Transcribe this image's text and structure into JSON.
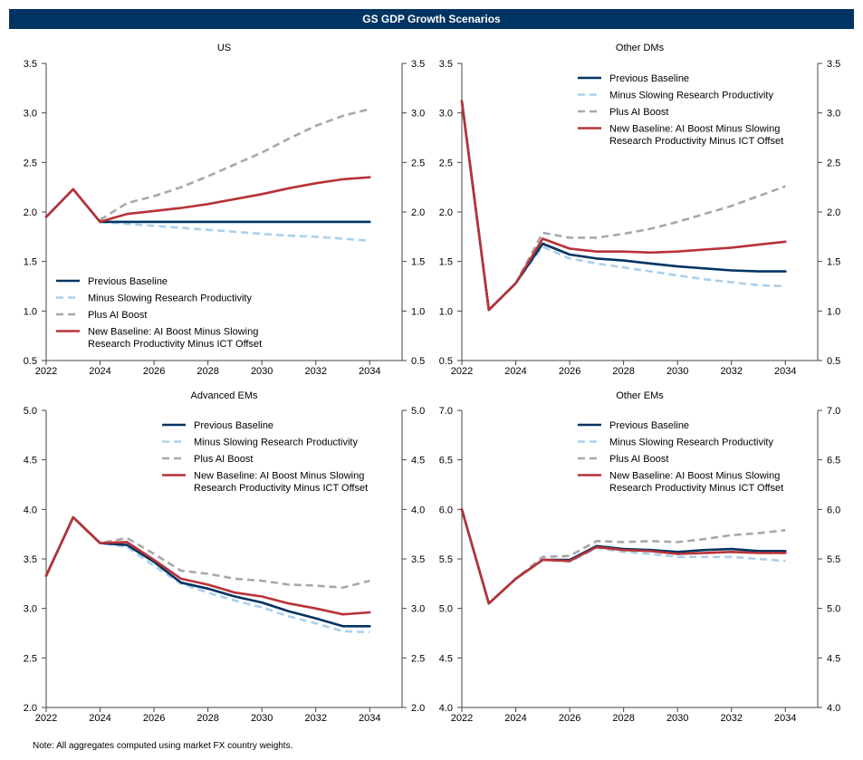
{
  "header": {
    "title": "GS GDP Growth Scenarios"
  },
  "footer": {
    "note": "Note: All aggregates computed using market FX country weights."
  },
  "colors": {
    "previous_baseline": "#003462",
    "minus_slowing": "#a9d0ec",
    "plus_ai": "#a8a8a8",
    "new_baseline": "#b83237",
    "header_bg": "#003462"
  },
  "chart_data": [
    {
      "type": "line",
      "title": "US",
      "legend_position": "bottom-left",
      "ylim": [
        0.5,
        3.5
      ],
      "yticks": [
        "0.5",
        "1.0",
        "1.5",
        "2.0",
        "2.5",
        "3.0",
        "3.5"
      ],
      "xlim": [
        2022,
        2035.2
      ],
      "xticks": [
        "2022",
        "2024",
        "2026",
        "2028",
        "2030",
        "2032",
        "2034"
      ],
      "series": [
        {
          "name": "Previous Baseline",
          "key": "previous_baseline",
          "dash": false,
          "x": [
            2022,
            2023,
            2024,
            2025,
            2026,
            2027,
            2028,
            2029,
            2030,
            2031,
            2032,
            2033,
            2034
          ],
          "values": [
            1.95,
            2.23,
            1.9,
            1.9,
            1.9,
            1.9,
            1.9,
            1.9,
            1.9,
            1.9,
            1.9,
            1.9,
            1.9
          ]
        },
        {
          "name": "Minus Slowing Research Productivity",
          "key": "minus_slowing",
          "dash": true,
          "x": [
            2024,
            2025,
            2026,
            2027,
            2028,
            2029,
            2030,
            2031,
            2032,
            2033,
            2034
          ],
          "values": [
            1.9,
            1.88,
            1.86,
            1.84,
            1.82,
            1.8,
            1.78,
            1.76,
            1.75,
            1.73,
            1.71
          ]
        },
        {
          "name": "Plus AI Boost",
          "key": "plus_ai",
          "dash": true,
          "x": [
            2024,
            2025,
            2026,
            2027,
            2028,
            2029,
            2030,
            2031,
            2032,
            2033,
            2034
          ],
          "values": [
            1.92,
            2.09,
            2.16,
            2.25,
            2.36,
            2.48,
            2.6,
            2.74,
            2.87,
            2.97,
            3.04
          ]
        },
        {
          "name": "New Baseline: AI Boost Minus Slowing Research Productivity Minus ICT Offset",
          "key": "new_baseline",
          "dash": false,
          "legend_lines": [
            "New Baseline: AI Boost Minus Slowing",
            "Research Productivity Minus ICT Offset"
          ],
          "x": [
            2022,
            2023,
            2024,
            2025,
            2026,
            2027,
            2028,
            2029,
            2030,
            2031,
            2032,
            2033,
            2034
          ],
          "values": [
            1.95,
            2.23,
            1.9,
            1.98,
            2.01,
            2.04,
            2.08,
            2.13,
            2.18,
            2.24,
            2.29,
            2.33,
            2.35
          ]
        }
      ]
    },
    {
      "type": "line",
      "title": "Other DMs",
      "legend_position": "top-right",
      "ylim": [
        0.5,
        3.5
      ],
      "yticks": [
        "0.5",
        "1.0",
        "1.5",
        "2.0",
        "2.5",
        "3.0",
        "3.5"
      ],
      "xlim": [
        2022,
        2035.2
      ],
      "xticks": [
        "2022",
        "2024",
        "2026",
        "2028",
        "2030",
        "2032",
        "2034"
      ],
      "series": [
        {
          "name": "Previous Baseline",
          "key": "previous_baseline",
          "dash": false,
          "x": [
            2022,
            2023,
            2024,
            2025,
            2026,
            2027,
            2028,
            2029,
            2030,
            2031,
            2032,
            2033,
            2034
          ],
          "values": [
            3.12,
            1.01,
            1.28,
            1.68,
            1.57,
            1.53,
            1.51,
            1.48,
            1.45,
            1.43,
            1.41,
            1.4,
            1.4
          ]
        },
        {
          "name": "Minus Slowing Research Productivity",
          "key": "minus_slowing",
          "dash": true,
          "x": [
            2022,
            2023,
            2024,
            2025,
            2026,
            2027,
            2028,
            2029,
            2030,
            2031,
            2032,
            2033,
            2034
          ],
          "values": [
            3.12,
            1.01,
            1.28,
            1.65,
            1.53,
            1.48,
            1.44,
            1.4,
            1.36,
            1.32,
            1.29,
            1.26,
            1.25
          ]
        },
        {
          "name": "Plus AI Boost",
          "key": "plus_ai",
          "dash": true,
          "x": [
            2022,
            2023,
            2024,
            2025,
            2026,
            2027,
            2028,
            2029,
            2030,
            2031,
            2032,
            2033,
            2034
          ],
          "values": [
            3.12,
            1.01,
            1.28,
            1.79,
            1.74,
            1.74,
            1.78,
            1.83,
            1.9,
            1.98,
            2.06,
            2.16,
            2.26
          ]
        },
        {
          "name": "New Baseline: AI Boost Minus Slowing Research Productivity Minus ICT Offset",
          "key": "new_baseline",
          "dash": false,
          "legend_lines": [
            "New Baseline: AI Boost Minus Slowing",
            "Research Productivity Minus ICT Offset"
          ],
          "x": [
            2022,
            2023,
            2024,
            2025,
            2026,
            2027,
            2028,
            2029,
            2030,
            2031,
            2032,
            2033,
            2034
          ],
          "values": [
            3.12,
            1.01,
            1.28,
            1.73,
            1.63,
            1.6,
            1.6,
            1.59,
            1.6,
            1.62,
            1.64,
            1.67,
            1.7
          ]
        }
      ]
    },
    {
      "type": "line",
      "title": "Advanced EMs",
      "legend_position": "top-right",
      "ylim": [
        2.0,
        5.0
      ],
      "yticks": [
        "2.0",
        "2.5",
        "3.0",
        "3.5",
        "4.0",
        "4.5",
        "5.0"
      ],
      "xlim": [
        2022,
        2035.2
      ],
      "xticks": [
        "2022",
        "2024",
        "2026",
        "2028",
        "2030",
        "2032",
        "2034"
      ],
      "series": [
        {
          "name": "Previous Baseline",
          "key": "previous_baseline",
          "dash": false,
          "x": [
            2022,
            2023,
            2024,
            2025,
            2026,
            2027,
            2028,
            2029,
            2030,
            2031,
            2032,
            2033,
            2034
          ],
          "values": [
            3.33,
            3.92,
            3.66,
            3.64,
            3.47,
            3.26,
            3.2,
            3.12,
            3.06,
            2.97,
            2.9,
            2.82,
            2.82
          ]
        },
        {
          "name": "Minus Slowing Research Productivity",
          "key": "minus_slowing",
          "dash": true,
          "x": [
            2022,
            2023,
            2024,
            2025,
            2026,
            2027,
            2028,
            2029,
            2030,
            2031,
            2032,
            2033,
            2034
          ],
          "values": [
            3.33,
            3.92,
            3.66,
            3.62,
            3.43,
            3.25,
            3.16,
            3.08,
            3.01,
            2.92,
            2.85,
            2.77,
            2.76
          ]
        },
        {
          "name": "Plus AI Boost",
          "key": "plus_ai",
          "dash": true,
          "x": [
            2022,
            2023,
            2024,
            2025,
            2026,
            2027,
            2028,
            2029,
            2030,
            2031,
            2032,
            2033,
            2034
          ],
          "values": [
            3.33,
            3.92,
            3.66,
            3.71,
            3.55,
            3.38,
            3.35,
            3.3,
            3.28,
            3.24,
            3.23,
            3.21,
            3.28
          ]
        },
        {
          "name": "New Baseline: AI Boost Minus Slowing Research Productivity Minus ICT Offset",
          "key": "new_baseline",
          "dash": false,
          "legend_lines": [
            "New Baseline: AI Boost Minus Slowing",
            "Research Productivity Minus ICT Offset"
          ],
          "x": [
            2022,
            2023,
            2024,
            2025,
            2026,
            2027,
            2028,
            2029,
            2030,
            2031,
            2032,
            2033,
            2034
          ],
          "values": [
            3.33,
            3.92,
            3.66,
            3.67,
            3.49,
            3.3,
            3.24,
            3.16,
            3.12,
            3.05,
            3.0,
            2.94,
            2.96
          ]
        }
      ]
    },
    {
      "type": "line",
      "title": "Other EMs",
      "legend_position": "top-right",
      "ylim": [
        4.0,
        7.0
      ],
      "yticks": [
        "4.0",
        "4.5",
        "5.0",
        "5.5",
        "6.0",
        "6.5",
        "7.0"
      ],
      "xlim": [
        2022,
        2035.2
      ],
      "xticks": [
        "2022",
        "2024",
        "2026",
        "2028",
        "2030",
        "2032",
        "2034"
      ],
      "series": [
        {
          "name": "Previous Baseline",
          "key": "previous_baseline",
          "dash": false,
          "x": [
            2022,
            2023,
            2024,
            2025,
            2026,
            2027,
            2028,
            2029,
            2030,
            2031,
            2032,
            2033,
            2034
          ],
          "values": [
            6.0,
            5.05,
            5.3,
            5.49,
            5.49,
            5.63,
            5.6,
            5.59,
            5.57,
            5.59,
            5.6,
            5.58,
            5.58
          ]
        },
        {
          "name": "Minus Slowing Research Productivity",
          "key": "minus_slowing",
          "dash": true,
          "x": [
            2022,
            2023,
            2024,
            2025,
            2026,
            2027,
            2028,
            2029,
            2030,
            2031,
            2032,
            2033,
            2034
          ],
          "values": [
            6.0,
            5.05,
            5.3,
            5.49,
            5.47,
            5.61,
            5.57,
            5.55,
            5.52,
            5.52,
            5.52,
            5.5,
            5.48
          ]
        },
        {
          "name": "Plus AI Boost",
          "key": "plus_ai",
          "dash": true,
          "x": [
            2022,
            2023,
            2024,
            2025,
            2026,
            2027,
            2028,
            2029,
            2030,
            2031,
            2032,
            2033,
            2034
          ],
          "values": [
            6.0,
            5.05,
            5.3,
            5.52,
            5.53,
            5.68,
            5.67,
            5.68,
            5.67,
            5.7,
            5.74,
            5.76,
            5.79
          ]
        },
        {
          "name": "New Baseline: AI Boost Minus Slowing Research Productivity Minus ICT Offset",
          "key": "new_baseline",
          "dash": false,
          "legend_lines": [
            "New Baseline: AI Boost Minus Slowing",
            "Research Productivity Minus ICT Offset"
          ],
          "x": [
            2022,
            2023,
            2024,
            2025,
            2026,
            2027,
            2028,
            2029,
            2030,
            2031,
            2032,
            2033,
            2034
          ],
          "values": [
            6.0,
            5.05,
            5.3,
            5.49,
            5.48,
            5.62,
            5.59,
            5.58,
            5.55,
            5.56,
            5.57,
            5.56,
            5.56
          ]
        }
      ]
    }
  ]
}
